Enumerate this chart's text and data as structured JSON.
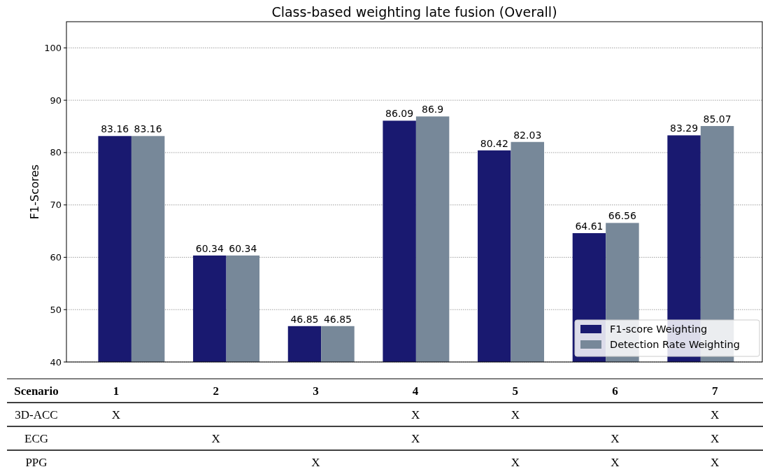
{
  "chart_data": {
    "type": "bar",
    "title": "Class-based weighting late fusion (Overall)",
    "ylabel": "F1-Scores",
    "categories": [
      "1",
      "2",
      "3",
      "4",
      "5",
      "6",
      "7"
    ],
    "series": [
      {
        "name": "F1-score Weighting",
        "color": "#191970",
        "values": [
          83.16,
          60.34,
          46.85,
          86.09,
          80.42,
          64.61,
          83.29
        ]
      },
      {
        "name": "Detection Rate Weighting",
        "color": "#778899",
        "values": [
          83.16,
          60.34,
          46.85,
          86.9,
          82.03,
          66.56,
          85.07
        ]
      }
    ],
    "ylim": [
      40,
      105
    ],
    "yticks": [
      40,
      50,
      60,
      70,
      80,
      90,
      100
    ],
    "grid": "y",
    "legend": "bottom right",
    "data_labels": true,
    "annotations": [
      "Scenario",
      "3D-ACC\tX\t\t\tX\tX\t\tX",
      "ECG\t\tX\t\tX\t\tX\tX",
      "PPG\t\t\tX\t\tX\tX\tX"
    ]
  }
}
